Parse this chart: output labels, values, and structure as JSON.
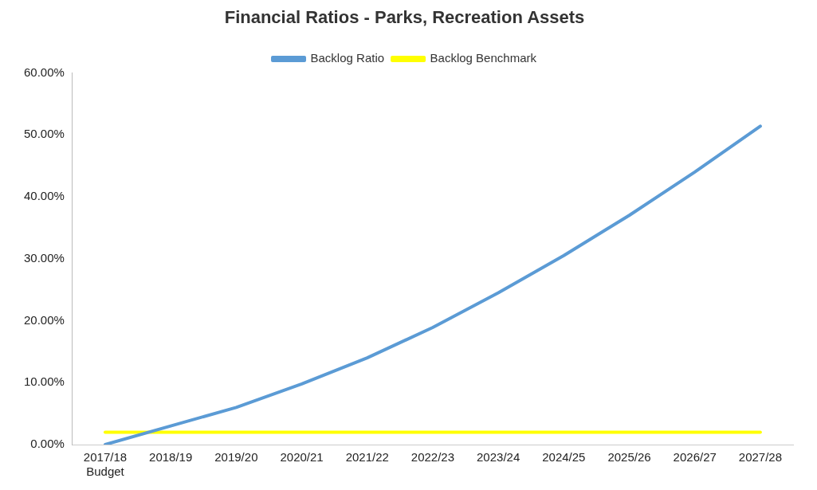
{
  "chart_data": {
    "type": "line",
    "title": "Financial Ratios - Parks, Recreation Assets",
    "categories": [
      "2017/18\nBudget",
      "2018/19",
      "2019/20",
      "2020/21",
      "2021/22",
      "2022/23",
      "2023/24",
      "2024/25",
      "2025/26",
      "2026/27",
      "2027/28"
    ],
    "series": [
      {
        "name": "Backlog Ratio",
        "color": "#5b9bd5",
        "values": [
          0.0,
          3.0,
          6.0,
          9.8,
          14.0,
          18.9,
          24.5,
          30.5,
          37.0,
          44.0,
          51.4
        ]
      },
      {
        "name": "Backlog Benchmark",
        "color": "#ffff00",
        "values": [
          2,
          2,
          2,
          2,
          2,
          2,
          2,
          2,
          2,
          2,
          2
        ]
      }
    ],
    "ylim": [
      0,
      60
    ],
    "yticks": [
      {
        "value": 0,
        "label": "0.00%"
      },
      {
        "value": 10,
        "label": "10.00%"
      },
      {
        "value": 20,
        "label": "20.00%"
      },
      {
        "value": 30,
        "label": "30.00%"
      },
      {
        "value": 40,
        "label": "40.00%"
      },
      {
        "value": 50,
        "label": "50.00%"
      },
      {
        "value": 60,
        "label": "60.00%"
      }
    ],
    "grid": false,
    "legend": "top",
    "marker": "none",
    "line_style": "solid"
  }
}
